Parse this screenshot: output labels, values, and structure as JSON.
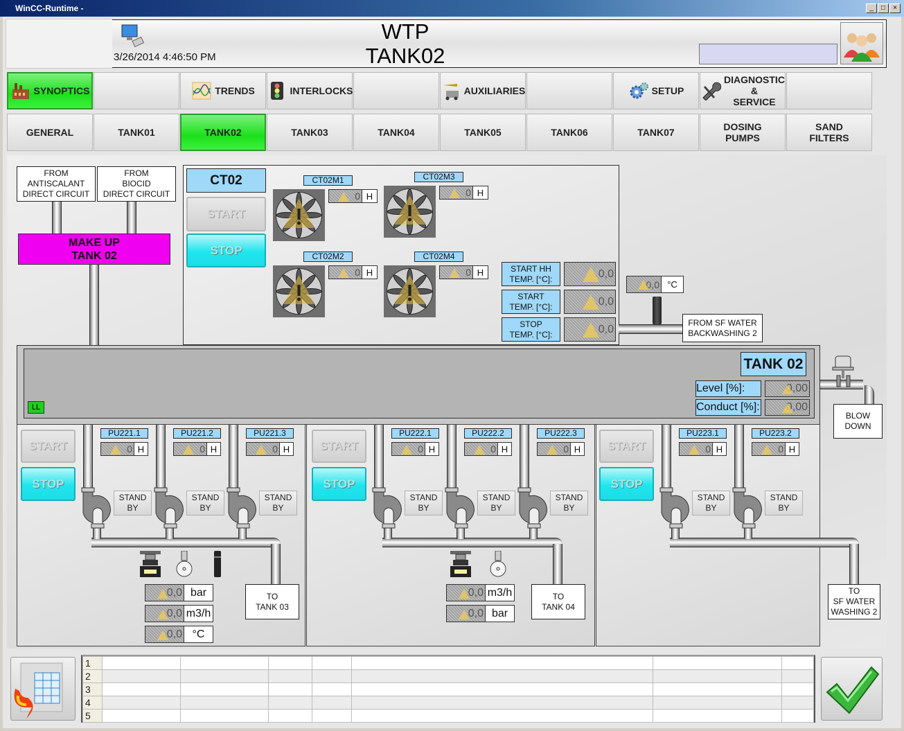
{
  "window": {
    "title": "WinCC-Runtime -",
    "controls": [
      "_",
      "□",
      "×"
    ]
  },
  "header": {
    "title_line1": "WTP",
    "title_line2": "TANK02",
    "datetime": "3/26/2014 4:46:50 PM",
    "user_field": ""
  },
  "nav_main": [
    {
      "label": "SYNOPTICS",
      "icon": "factory-icon",
      "active": true
    },
    {
      "label": "",
      "icon": null,
      "active": false
    },
    {
      "label": "TRENDS",
      "icon": "trend-chart-icon",
      "active": false
    },
    {
      "label": "INTERLOCKS",
      "icon": "traffic-light-icon",
      "active": false
    },
    {
      "label": "",
      "icon": null,
      "active": false
    },
    {
      "label": "AUXILIARIES",
      "icon": "crane-icon",
      "active": false
    },
    {
      "label": "",
      "icon": null,
      "active": false
    },
    {
      "label": "SETUP",
      "icon": "gears-icon",
      "active": false
    },
    {
      "label": "DIAGNOSTIC\n&\nSERVICE",
      "icon": "wrench-icon",
      "active": false
    },
    {
      "label": "",
      "icon": null,
      "active": false
    }
  ],
  "nav_tanks": [
    {
      "label": "GENERAL",
      "active": false
    },
    {
      "label": "TANK01",
      "active": false
    },
    {
      "label": "TANK02",
      "active": true
    },
    {
      "label": "TANK03",
      "active": false
    },
    {
      "label": "TANK04",
      "active": false
    },
    {
      "label": "TANK05",
      "active": false
    },
    {
      "label": "TANK06",
      "active": false
    },
    {
      "label": "TANK07",
      "active": false
    },
    {
      "label": "DOSING\nPUMPS",
      "active": false
    },
    {
      "label": "SAND\nFILTERS",
      "active": false
    }
  ],
  "sources": {
    "antiscalant": "FROM\nANTISCALANT\nDIRECT CIRCUIT",
    "biocid": "FROM\nBIOCID\nDIRECT CIRCUIT",
    "makeup": "MAKE UP\nTANK 02"
  },
  "ct": {
    "label": "CT02",
    "start": "START",
    "stop": "STOP",
    "fans": [
      {
        "label": "CT02M1",
        "hours": "0",
        "unit": "H"
      },
      {
        "label": "CT02M3",
        "hours": "0",
        "unit": "H"
      },
      {
        "label": "CT02M2",
        "hours": "0",
        "unit": "H"
      },
      {
        "label": "CT02M4",
        "hours": "0",
        "unit": "H"
      }
    ],
    "temps": [
      {
        "label": "START HH\nTEMP. [°C]:",
        "value": "0,0"
      },
      {
        "label": "START\nTEMP. [°C]:",
        "value": "0,0"
      },
      {
        "label": "STOP\nTEMP. [°C]:",
        "value": "0,0"
      }
    ]
  },
  "inlet": {
    "temp_value": "0,0",
    "temp_unit": "°C",
    "label": "FROM SF WATER\nBACKWASHING 2"
  },
  "tank": {
    "label": "TANK 02",
    "ll": "LL",
    "level_label": "Level [%]:",
    "level_value": "0,00",
    "conduct_label": "Conduct [%]:",
    "conduct_value": "0,00",
    "blowdown": "BLOW\nDOWN"
  },
  "groups": [
    {
      "start": "START",
      "stop": "STOP",
      "dest": "TO\nTANK 03",
      "pumps": [
        {
          "label": "PU221.1",
          "hours": "0",
          "unit": "H",
          "mode": "STAND\nBY"
        },
        {
          "label": "PU221.2",
          "hours": "0",
          "unit": "H",
          "mode": "STAND\nBY"
        },
        {
          "label": "PU221.3",
          "hours": "0",
          "unit": "H",
          "mode": "STAND\nBY"
        }
      ],
      "readouts": [
        {
          "value": "0,0",
          "unit": "bar"
        },
        {
          "value": "0,0",
          "unit": "m3/h"
        },
        {
          "value": "0,0",
          "unit": "°C"
        }
      ]
    },
    {
      "start": "START",
      "stop": "STOP",
      "dest": "TO\nTANK 04",
      "pumps": [
        {
          "label": "PU222.1",
          "hours": "0",
          "unit": "H",
          "mode": "STAND\nBY"
        },
        {
          "label": "PU222.2",
          "hours": "0",
          "unit": "H",
          "mode": "STAND\nBY"
        },
        {
          "label": "PU222.3",
          "hours": "0",
          "unit": "H",
          "mode": "STAND\nBY"
        }
      ],
      "readouts": [
        {
          "value": "0,0",
          "unit": "m3/h"
        },
        {
          "value": "0,0",
          "unit": "bar"
        }
      ]
    },
    {
      "start": "START",
      "stop": "STOP",
      "dest": "TO\nSF WATER\nWASHING 2",
      "pumps": [
        {
          "label": "PU223.1",
          "hours": "0",
          "unit": "H",
          "mode": "STAND\nBY"
        },
        {
          "label": "PU223.2",
          "hours": "0",
          "unit": "H",
          "mode": "STAND\nBY"
        }
      ],
      "readouts": []
    }
  ],
  "alarm_table": {
    "row_numbers": [
      "1",
      "2",
      "3",
      "4",
      "5"
    ]
  },
  "colors": {
    "active_green": "#1be01b",
    "label_blue": "#9fd8f8",
    "stop_cyan": "#1de6ee",
    "makeup_magenta": "#f000f0",
    "ll_green": "#22cc22"
  }
}
